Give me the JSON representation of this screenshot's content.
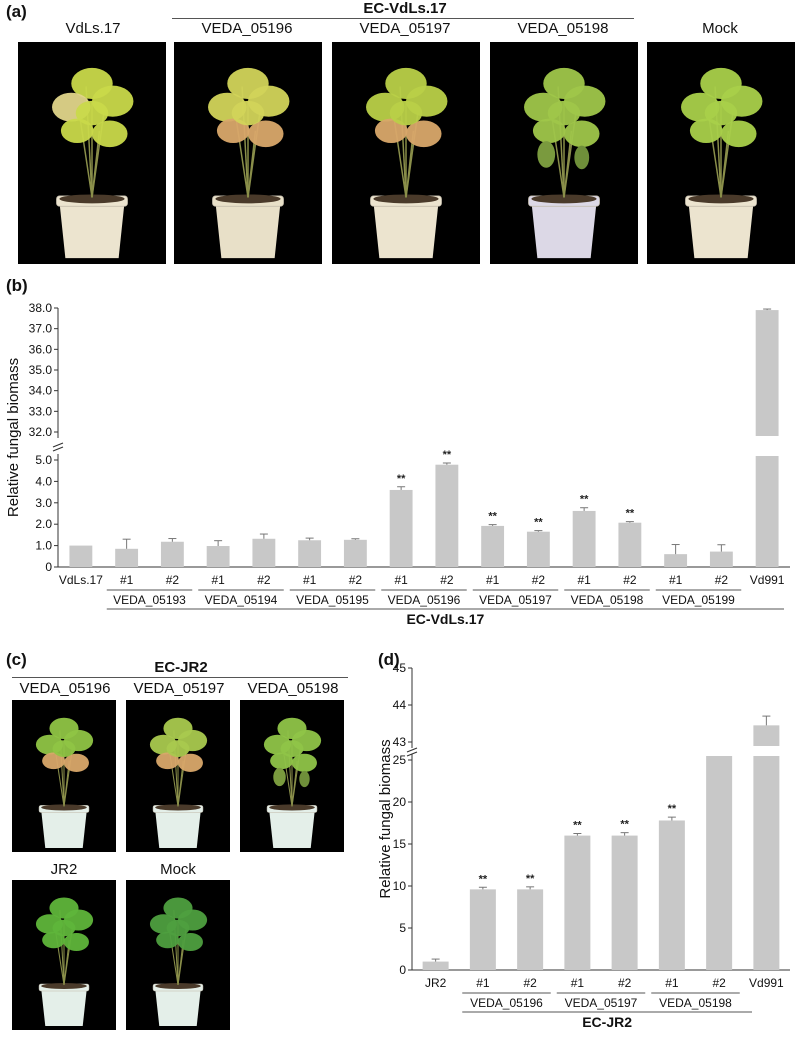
{
  "panel_a": {
    "letter": "(a)",
    "group_label": "EC-VdLs.17",
    "photos": [
      {
        "label": "VdLs.17",
        "pot": "#ece4cf",
        "leaf": "#c9d94a",
        "symptom": "yellowing"
      },
      {
        "label": "VEDA_05196",
        "pot": "#e8e0c8",
        "leaf": "#d2d45a",
        "symptom": "chlorosis"
      },
      {
        "label": "VEDA_05197",
        "pot": "#ece4cf",
        "leaf": "#b9d048",
        "symptom": "chlorosis"
      },
      {
        "label": "VEDA_05198",
        "pot": "#dcd8e6",
        "leaf": "#9fc64a",
        "symptom": "wilting"
      },
      {
        "label": "Mock",
        "pot": "#ece4cf",
        "leaf": "#a9d04a",
        "symptom": "healthy"
      }
    ]
  },
  "panel_b": {
    "letter": "(b)",
    "group_label": "EC-VdLs.17"
  },
  "panel_c": {
    "letter": "(c)",
    "group_label": "EC-JR2",
    "photos_top": [
      {
        "label": "VEDA_05196",
        "pot": "#e4efe9",
        "leaf": "#8fc444",
        "symptom": "chlorosis"
      },
      {
        "label": "VEDA_05197",
        "pot": "#e4efe9",
        "leaf": "#a9c94e",
        "symptom": "chlorosis"
      },
      {
        "label": "VEDA_05198",
        "pot": "#e4efe9",
        "leaf": "#8fc448",
        "symptom": "wilting"
      }
    ],
    "photos_bottom": [
      {
        "label": "JR2",
        "pot": "#e4efe9",
        "leaf": "#5fb53a",
        "symptom": "healthy"
      },
      {
        "label": "Mock",
        "pot": "#e4efe9",
        "leaf": "#4e9f3f",
        "symptom": "healthy"
      }
    ]
  },
  "panel_d": {
    "letter": "(d)",
    "group_label": "EC-JR2"
  },
  "chart_data": [
    {
      "type": "bar",
      "panel": "b",
      "ylabel": "Relative fungal biomass",
      "axis_break": true,
      "ylim_lower": [
        0,
        5.0
      ],
      "ylim_upper": [
        32.0,
        38.0
      ],
      "yticks_lower": [
        "0",
        "1.0",
        "2.0",
        "3.0",
        "4.0",
        "5.0"
      ],
      "yticks_upper": [
        "32.0",
        "33.0",
        "34.0",
        "35.0",
        "36.0",
        "37.0",
        "38.0"
      ],
      "categories": [
        "VdLs.17",
        "#1",
        "#2",
        "#1",
        "#2",
        "#1",
        "#2",
        "#1",
        "#2",
        "#1",
        "#2",
        "#1",
        "#2",
        "#1",
        "#2",
        "Vd991"
      ],
      "values": [
        1.0,
        0.85,
        1.18,
        0.98,
        1.32,
        1.25,
        1.27,
        3.6,
        4.78,
        1.92,
        1.65,
        2.62,
        2.07,
        0.6,
        0.72,
        37.9
      ],
      "errors": [
        0.0,
        0.45,
        0.15,
        0.25,
        0.22,
        0.1,
        0.05,
        0.15,
        0.08,
        0.06,
        0.05,
        0.15,
        0.05,
        0.45,
        0.32,
        0.05
      ],
      "significance": [
        "",
        "",
        "",
        "",
        "",
        "",
        "",
        "**",
        "**",
        "**",
        "**",
        "**",
        "**",
        "",
        "",
        ""
      ],
      "groups": [
        {
          "label": "VEDA_05193",
          "from": 1,
          "to": 2
        },
        {
          "label": "VEDA_05194",
          "from": 3,
          "to": 4
        },
        {
          "label": "VEDA_05195",
          "from": 5,
          "to": 6
        },
        {
          "label": "VEDA_05196",
          "from": 7,
          "to": 8
        },
        {
          "label": "VEDA_05197",
          "from": 9,
          "to": 10
        },
        {
          "label": "VEDA_05198",
          "from": 11,
          "to": 12
        },
        {
          "label": "VEDA_05199",
          "from": 13,
          "to": 14
        }
      ],
      "supergroup": "EC-VdLs.17",
      "bar_color": "#c8c8c8"
    },
    {
      "type": "bar",
      "panel": "d",
      "ylabel": "Relative fungal biomass",
      "axis_break": true,
      "ylim_lower": [
        0,
        25
      ],
      "ylim_upper": [
        43,
        45
      ],
      "yticks_lower": [
        "0",
        "5",
        "10",
        "15",
        "20",
        "25"
      ],
      "yticks_upper": [
        "43",
        "44",
        "45"
      ],
      "categories": [
        "JR2",
        "#1",
        "#2",
        "#1",
        "#2",
        "#1",
        "#2",
        "Vd991"
      ],
      "values": [
        1.0,
        9.6,
        9.6,
        16.0,
        16.0,
        17.8,
        26.0,
        43.45
      ],
      "errors": [
        0.3,
        0.25,
        0.3,
        0.25,
        0.35,
        0.4,
        0.3,
        0.25
      ],
      "significance": [
        "",
        "**",
        "**",
        "**",
        "**",
        "**",
        "**",
        ""
      ],
      "groups": [
        {
          "label": "VEDA_05196",
          "from": 1,
          "to": 2
        },
        {
          "label": "VEDA_05197",
          "from": 3,
          "to": 4
        },
        {
          "label": "VEDA_05198",
          "from": 5,
          "to": 6
        }
      ],
      "supergroup": "EC-JR2",
      "bar_color": "#c8c8c8"
    }
  ]
}
